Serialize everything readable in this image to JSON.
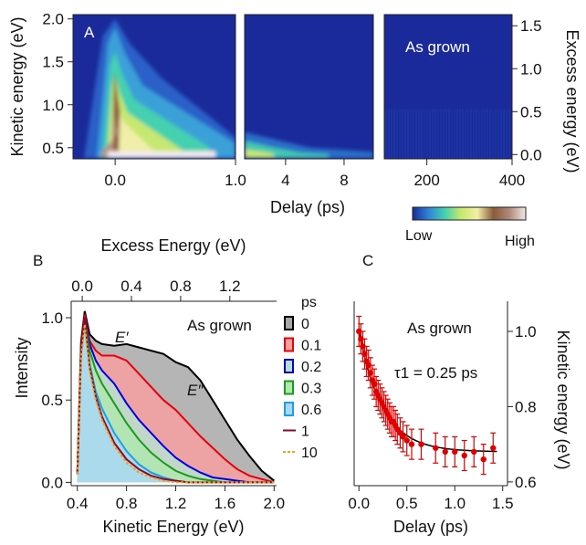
{
  "figure": {
    "panels": {
      "A": {
        "label": "A",
        "annotation": "As grown"
      },
      "B": {
        "label": "B",
        "annotation": "As grown",
        "peak_labels": [
          "E′",
          "E″"
        ],
        "legend_title": "ps"
      },
      "C": {
        "label": "C",
        "annotation": "As grown",
        "fit_text": "τ1 = 0.25 ps"
      }
    },
    "colorbar": {
      "low": "Low",
      "high": "High",
      "colors": [
        "#1a2a9a",
        "#2f86d6",
        "#45d0b0",
        "#c8e86a",
        "#f4f0a8",
        "#8a5a3a",
        "#b08a7a",
        "#f2eaea"
      ]
    }
  },
  "chart_data": [
    {
      "type": "heatmap",
      "panel": "A",
      "title": "",
      "xlabel": "Delay (ps)",
      "ylabel": "Kinetic energy (eV)",
      "y2label": "Excess energy (eV)",
      "segments": [
        {
          "xlim": [
            -0.35,
            1.0
          ],
          "xticks": [
            "0.0",
            "1.0"
          ]
        },
        {
          "xlim": [
            1.2,
            10
          ],
          "xticks": [
            "4",
            "8"
          ]
        },
        {
          "xlim": [
            100,
            400
          ],
          "xticks": [
            "200",
            "400"
          ]
        }
      ],
      "ylim": [
        0.37,
        2.05
      ],
      "yticks": [
        "0.5",
        "1.0",
        "1.5",
        "2.0"
      ],
      "y2ticks": [
        "0.0",
        "0.5",
        "1.0",
        "1.5"
      ],
      "colorscale": [
        "Low",
        "High"
      ]
    },
    {
      "type": "area",
      "panel": "B",
      "title": "",
      "xlabel": "Kinetic Energy (eV)",
      "x2label": "Excess Energy (eV)",
      "ylabel": "Intensity",
      "xlim": [
        0.35,
        2.02
      ],
      "ylim": [
        -0.02,
        1.1
      ],
      "xticks": [
        "0.4",
        "0.8",
        "1.2",
        "1.6",
        "2.0"
      ],
      "x2ticks": [
        "0.0",
        "0.4",
        "0.8",
        "1.2"
      ],
      "yticks": [
        "0.0",
        "0.5",
        "1.0"
      ],
      "legend_title": "ps",
      "legend_position": "right",
      "series": [
        {
          "name": "0",
          "color": "#000000",
          "fill": "#a8a8a8",
          "x": [
            0.4,
            0.43,
            0.46,
            0.5,
            0.55,
            0.6,
            0.7,
            0.8,
            0.9,
            1.0,
            1.1,
            1.2,
            1.3,
            1.4,
            1.5,
            1.6,
            1.7,
            1.8,
            1.9,
            2.0
          ],
          "y": [
            0.05,
            0.85,
            1.04,
            0.9,
            0.86,
            0.84,
            0.83,
            0.84,
            0.82,
            0.8,
            0.78,
            0.73,
            0.7,
            0.62,
            0.5,
            0.38,
            0.26,
            0.16,
            0.07,
            0.01
          ]
        },
        {
          "name": "0.1",
          "color": "#e8000b",
          "fill": "#f7a0a0",
          "x": [
            0.4,
            0.43,
            0.46,
            0.5,
            0.55,
            0.6,
            0.7,
            0.8,
            0.9,
            1.0,
            1.1,
            1.2,
            1.3,
            1.4,
            1.5,
            1.6,
            1.7,
            1.8,
            1.9,
            2.0
          ],
          "y": [
            0.05,
            0.82,
            1.02,
            0.86,
            0.8,
            0.77,
            0.77,
            0.74,
            0.66,
            0.58,
            0.5,
            0.44,
            0.36,
            0.28,
            0.21,
            0.14,
            0.08,
            0.04,
            0.02,
            0.0
          ]
        },
        {
          "name": "0.2",
          "color": "#0000e0",
          "fill": "#b8e0d0",
          "x": [
            0.4,
            0.43,
            0.46,
            0.5,
            0.55,
            0.6,
            0.7,
            0.8,
            0.9,
            1.0,
            1.1,
            1.2,
            1.3,
            1.4,
            1.5,
            1.6,
            1.7,
            1.8,
            1.9,
            2.0
          ],
          "y": [
            0.05,
            0.8,
            1.0,
            0.84,
            0.74,
            0.68,
            0.6,
            0.48,
            0.38,
            0.3,
            0.22,
            0.15,
            0.1,
            0.06,
            0.03,
            0.02,
            0.01,
            0.0,
            0.0,
            0.0
          ]
        },
        {
          "name": "0.3",
          "color": "#1a9a1a",
          "fill": "#b0e8b0",
          "x": [
            0.4,
            0.43,
            0.46,
            0.5,
            0.55,
            0.6,
            0.7,
            0.8,
            0.9,
            1.0,
            1.1,
            1.2,
            1.3,
            1.4,
            1.5,
            1.6,
            1.7,
            1.8,
            1.9,
            2.0
          ],
          "y": [
            0.05,
            0.8,
            0.99,
            0.8,
            0.68,
            0.6,
            0.48,
            0.36,
            0.26,
            0.18,
            0.12,
            0.07,
            0.04,
            0.02,
            0.01,
            0.0,
            0.0,
            0.0,
            0.0,
            0.0
          ]
        },
        {
          "name": "0.6",
          "color": "#1aa0e8",
          "fill": "#a8d8f4",
          "x": [
            0.4,
            0.43,
            0.46,
            0.5,
            0.55,
            0.6,
            0.7,
            0.8,
            0.9,
            1.0,
            1.1,
            1.2,
            1.3,
            1.4,
            1.5,
            1.6,
            1.7,
            1.8,
            1.9,
            2.0
          ],
          "y": [
            0.05,
            0.78,
            0.98,
            0.72,
            0.55,
            0.45,
            0.3,
            0.19,
            0.11,
            0.06,
            0.03,
            0.01,
            0.0,
            0.0,
            0.0,
            0.0,
            0.0,
            0.0,
            0.0,
            0.0
          ]
        },
        {
          "name": "1",
          "color": "#8a0a2a",
          "x": [
            0.4,
            0.43,
            0.46,
            0.5,
            0.55,
            0.6,
            0.7,
            0.8,
            0.9,
            1.0,
            1.1,
            1.2,
            1.3,
            1.4,
            1.5,
            1.6,
            1.7,
            1.8,
            1.9,
            2.0
          ],
          "y": [
            0.05,
            0.8,
            1.0,
            0.7,
            0.52,
            0.4,
            0.24,
            0.14,
            0.08,
            0.04,
            0.02,
            0.01,
            0.0,
            0.0,
            0.0,
            0.0,
            0.0,
            0.0,
            0.0,
            0.0
          ]
        },
        {
          "name": "10",
          "color": "#f0a020",
          "dashed": true,
          "x": [
            0.4,
            0.43,
            0.46,
            0.5,
            0.55,
            0.6,
            0.7,
            0.8,
            0.9,
            1.0,
            1.1,
            1.2,
            1.3,
            1.4,
            1.5,
            1.6,
            1.7,
            1.8,
            1.9,
            2.0
          ],
          "y": [
            0.05,
            0.76,
            0.96,
            0.68,
            0.5,
            0.38,
            0.22,
            0.12,
            0.06,
            0.03,
            0.01,
            0.0,
            0.0,
            0.0,
            0.0,
            0.0,
            0.0,
            0.0,
            0.0,
            0.0
          ]
        }
      ]
    },
    {
      "type": "scatter",
      "panel": "C",
      "title": "",
      "xlabel": "Delay (ps)",
      "y2label": "Kinetic energy (eV)",
      "xlim": [
        -0.05,
        1.55
      ],
      "ylim": [
        0.59,
        1.08
      ],
      "xticks": [
        "0.0",
        "0.5",
        "1.0",
        "1.5"
      ],
      "y2ticks": [
        "0.6",
        "0.8",
        "1.0"
      ],
      "series": [
        {
          "name": "data",
          "color": "#e00000",
          "x": [
            0.0,
            0.02,
            0.04,
            0.06,
            0.08,
            0.1,
            0.12,
            0.14,
            0.16,
            0.18,
            0.2,
            0.22,
            0.24,
            0.26,
            0.28,
            0.3,
            0.32,
            0.34,
            0.36,
            0.38,
            0.4,
            0.43,
            0.46,
            0.5,
            0.55,
            0.65,
            0.8,
            0.9,
            1.0,
            1.1,
            1.2,
            1.3,
            1.4
          ],
          "y": [
            1.0,
            0.98,
            0.96,
            0.94,
            0.92,
            0.91,
            0.89,
            0.87,
            0.86,
            0.84,
            0.83,
            0.82,
            0.81,
            0.8,
            0.79,
            0.78,
            0.77,
            0.76,
            0.76,
            0.75,
            0.74,
            0.73,
            0.72,
            0.71,
            0.7,
            0.7,
            0.69,
            0.68,
            0.68,
            0.67,
            0.68,
            0.66,
            0.69
          ],
          "error": 0.04
        },
        {
          "name": "fit",
          "color": "#000000",
          "tau": 0.25,
          "y0": 0.68,
          "amplitude": 0.32
        }
      ]
    }
  ]
}
